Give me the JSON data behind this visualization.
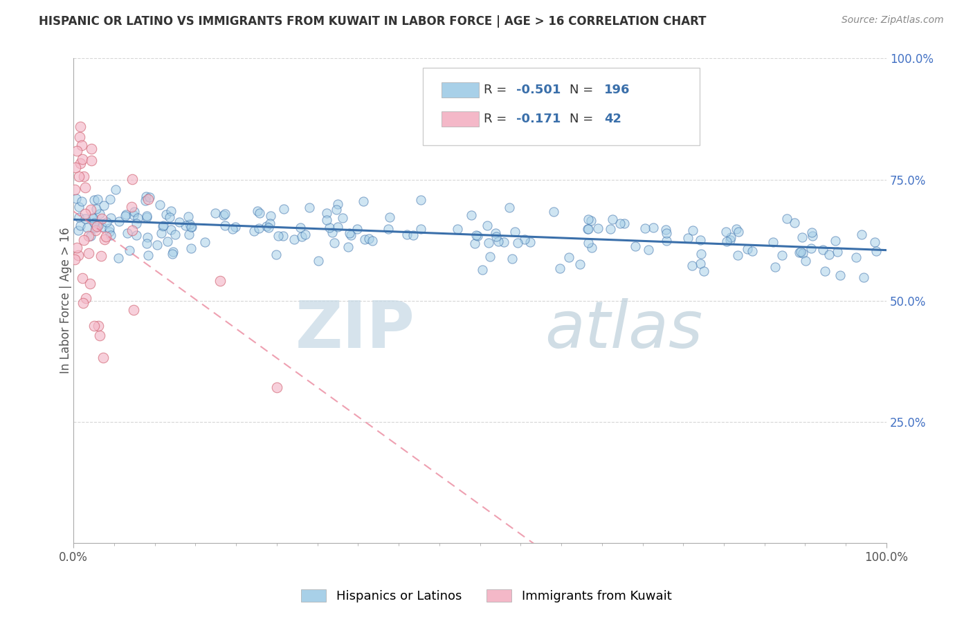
{
  "title": "HISPANIC OR LATINO VS IMMIGRANTS FROM KUWAIT IN LABOR FORCE | AGE > 16 CORRELATION CHART",
  "source": "Source: ZipAtlas.com",
  "ylabel": "In Labor Force | Age > 16",
  "legend_labels": [
    "Hispanics or Latinos",
    "Immigrants from Kuwait"
  ],
  "R_blue": -0.501,
  "N_blue": 196,
  "R_pink": -0.171,
  "N_pink": 42,
  "blue_color": "#a8d0e8",
  "pink_color": "#f4b8c8",
  "blue_line_color": "#3a6faa",
  "pink_line_color": "#e87890",
  "watermark_zip": "ZIP",
  "watermark_atlas": "atlas",
  "watermark_color_zip": "#c8dce8",
  "watermark_color_atlas": "#b0ccd8",
  "background_color": "#ffffff",
  "grid_color": "#cccccc",
  "title_color": "#333333",
  "xmin": 0.0,
  "xmax": 1.0,
  "ymin": 0.0,
  "ymax": 1.0,
  "ytick_vals": [
    0.25,
    0.5,
    0.75,
    1.0
  ],
  "ytick_labels": [
    "25.0%",
    "50.0%",
    "75.0%",
    "100.0%"
  ],
  "xtick_vals": [
    0.0,
    1.0
  ],
  "xtick_labels": [
    "0.0%",
    "100.0%"
  ]
}
